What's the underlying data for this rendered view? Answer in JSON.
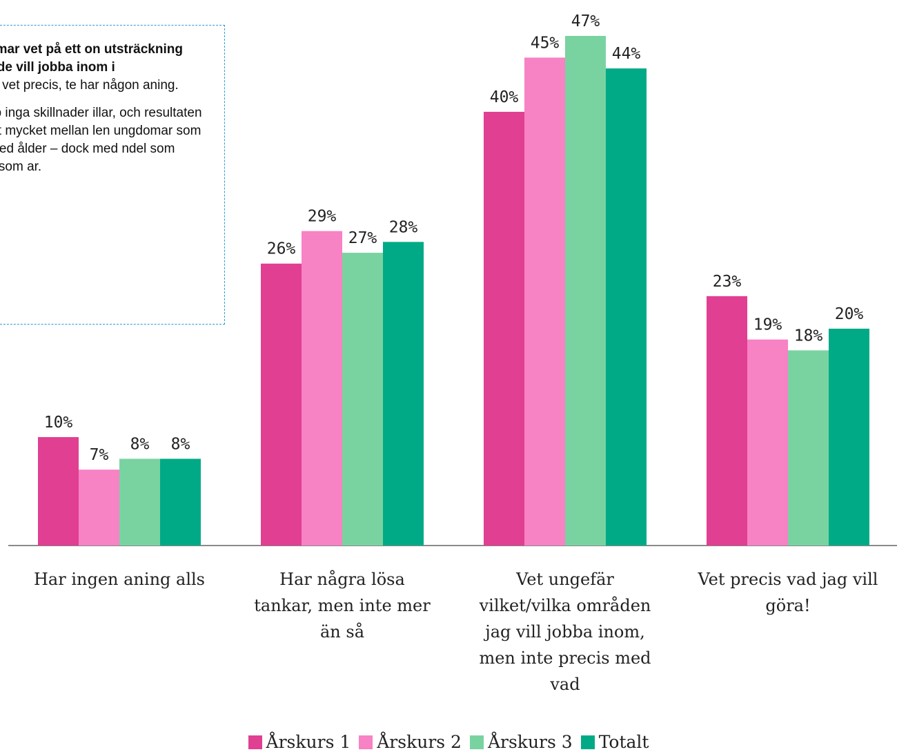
{
  "callout": {
    "lead": "eungdomar vet på ett on utsträckning vilket n de vill jobba inom i",
    "p1": "n av fem vet precis, te har någon aning.",
    "p2": "r i princip inga skillnader illar, och resultaten skiljer kilt mycket mellan len ungdomar som ”vet ot med ålder – dock med ndel som andelen som ar."
  },
  "chart_data": {
    "type": "bar",
    "categories": [
      "Har ingen aning alls",
      "Har några lösa tankar, men inte mer än så",
      "Vet ungefär vilket/vilka områden jag vill jobba inom, men inte precis med vad",
      "Vet precis vad jag vill göra!"
    ],
    "category_lines": [
      [
        "Har ingen aning alls"
      ],
      [
        "Har några lösa",
        "tankar, men inte mer",
        "än så"
      ],
      [
        "Vet ungefär",
        "vilket/vilka områden",
        "jag vill jobba inom,",
        "men inte precis med",
        "vad"
      ],
      [
        "Vet precis vad jag vill",
        "göra!"
      ]
    ],
    "series": [
      {
        "name": "Årskurs 1",
        "color": "#e03f92",
        "values": [
          10,
          26,
          40,
          23
        ]
      },
      {
        "name": "Årskurs 2",
        "color": "#f782c4",
        "values": [
          7,
          29,
          45,
          19
        ]
      },
      {
        "name": "Årskurs 3",
        "color": "#79d3a1",
        "values": [
          8,
          27,
          47,
          18
        ]
      },
      {
        "name": "Totalt",
        "color": "#00aa86",
        "values": [
          8,
          28,
          44,
          20
        ]
      }
    ],
    "value_suffix": "%",
    "ylim": [
      0,
      50
    ],
    "legend": "bottom",
    "grid": false
  }
}
